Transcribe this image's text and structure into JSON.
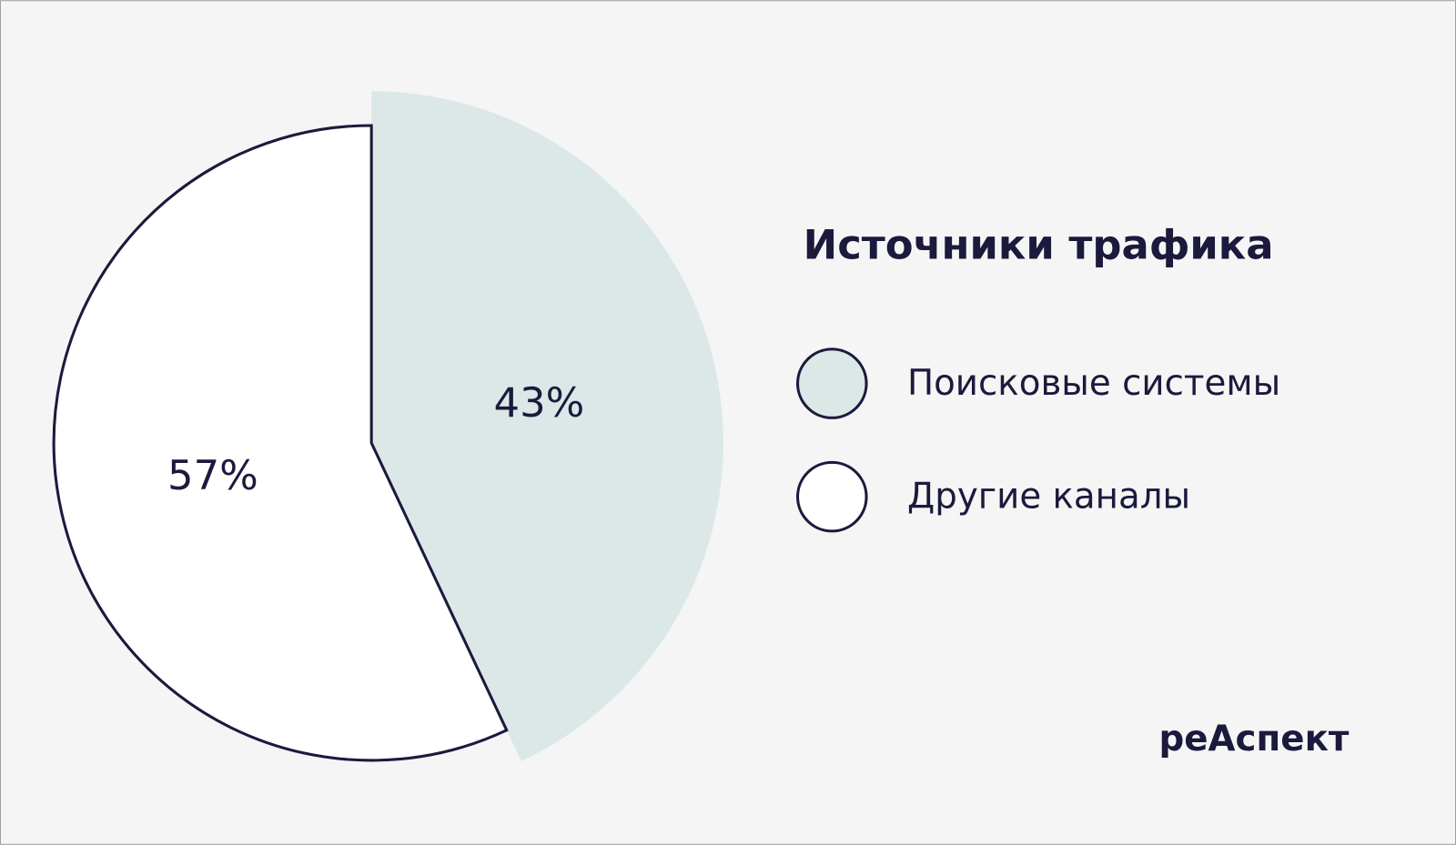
{
  "chart_data": {
    "type": "pie",
    "title": "Источники трафика",
    "categories": [
      "Поисковые системы",
      "Другие каналы"
    ],
    "values": [
      43,
      57
    ],
    "value_labels": [
      "43%",
      "57%"
    ],
    "colors": [
      "#dce8e8",
      "#ffffff"
    ]
  },
  "logo": "реАспект"
}
